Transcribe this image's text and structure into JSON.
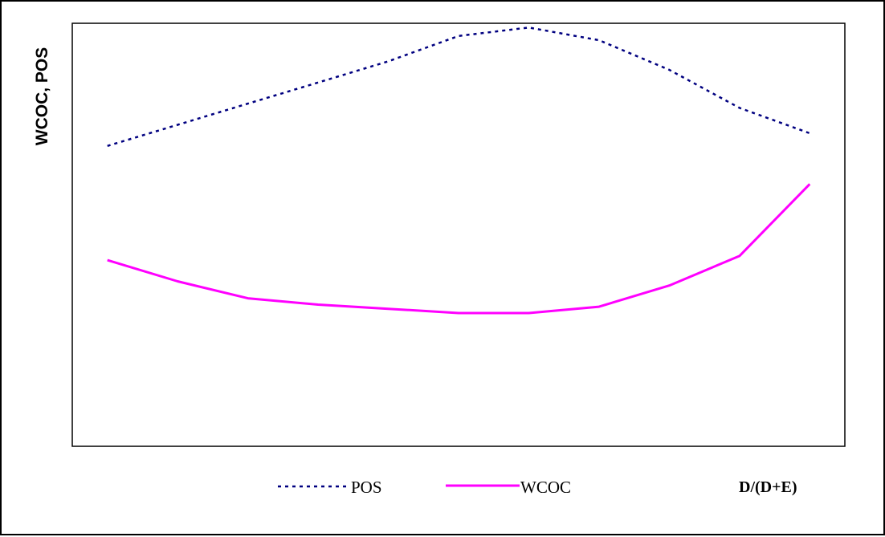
{
  "chart_data": {
    "type": "line",
    "title": "",
    "xlabel": "D/(D+E)",
    "ylabel": "WCOC, POS",
    "x": [
      0,
      0.1,
      0.2,
      0.3,
      0.4,
      0.5,
      0.6,
      0.7,
      0.8,
      0.9,
      1.0
    ],
    "xlim": [
      -0.05,
      1.05
    ],
    "ylim": [
      0,
      100
    ],
    "grid": false,
    "legend_position": "bottom",
    "series": [
      {
        "name": "POS",
        "color": "#000080",
        "style": "dotted",
        "values": [
          71,
          76,
          81,
          86,
          91,
          97,
          99,
          96,
          89,
          80,
          74
        ]
      },
      {
        "name": "WCOC",
        "color": "#ff00ff",
        "style": "solid",
        "values": [
          44,
          39,
          35,
          33.5,
          32.5,
          31.5,
          31.5,
          33,
          38,
          45,
          62
        ]
      }
    ]
  }
}
